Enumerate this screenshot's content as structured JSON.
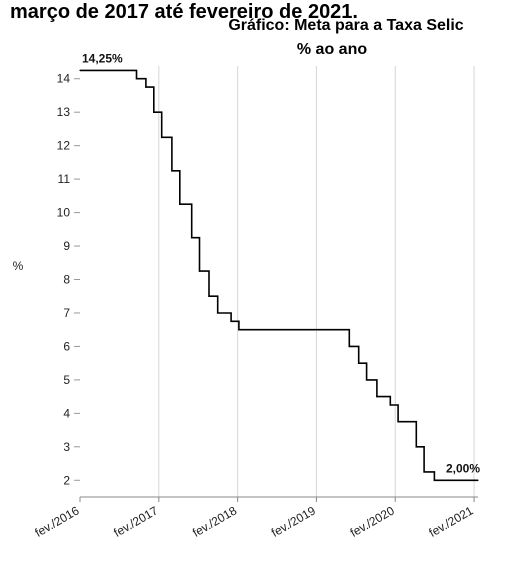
{
  "heading_fragment": "março de 2017 até fevereiro de 2021.",
  "chart_data": {
    "type": "line",
    "step": true,
    "title": "Gráfico: Meta para a Taxa Selic",
    "subtitle": "% ao ano",
    "ylabel": "%",
    "xlabel": "",
    "ylim": [
      1.5,
      14.5
    ],
    "yticks": [
      2,
      3,
      4,
      5,
      6,
      7,
      8,
      9,
      10,
      11,
      12,
      13,
      14
    ],
    "xlim": [
      2016.0833,
      2021.1333
    ],
    "xticks": [
      {
        "label": "fev./2016",
        "x": 2016.0833
      },
      {
        "label": "fev./2017",
        "x": 2017.0833
      },
      {
        "label": "fev./2018",
        "x": 2018.0833
      },
      {
        "label": "fev./2019",
        "x": 2019.0833
      },
      {
        "label": "fev./2020",
        "x": 2020.0833
      },
      {
        "label": "fev./2021",
        "x": 2021.0833
      }
    ],
    "grid": {
      "vertical": true,
      "horizontal": false
    },
    "series": [
      {
        "color": "#000000",
        "points": [
          {
            "x": 2016.0833,
            "y": 14.25
          },
          {
            "x": 2016.8,
            "y": 14.0
          },
          {
            "x": 2016.92,
            "y": 13.75
          },
          {
            "x": 2017.02,
            "y": 13.0
          },
          {
            "x": 2017.12,
            "y": 12.25
          },
          {
            "x": 2017.25,
            "y": 11.25
          },
          {
            "x": 2017.35,
            "y": 10.25
          },
          {
            "x": 2017.5,
            "y": 9.25
          },
          {
            "x": 2017.6,
            "y": 8.25
          },
          {
            "x": 2017.72,
            "y": 7.5
          },
          {
            "x": 2017.83,
            "y": 7.0
          },
          {
            "x": 2018.0,
            "y": 6.75
          },
          {
            "x": 2018.1,
            "y": 6.5
          },
          {
            "x": 2019.5,
            "y": 6.0
          },
          {
            "x": 2019.62,
            "y": 5.5
          },
          {
            "x": 2019.72,
            "y": 5.0
          },
          {
            "x": 2019.85,
            "y": 4.5
          },
          {
            "x": 2020.02,
            "y": 4.25
          },
          {
            "x": 2020.12,
            "y": 3.75
          },
          {
            "x": 2020.35,
            "y": 3.0
          },
          {
            "x": 2020.45,
            "y": 2.25
          },
          {
            "x": 2020.58,
            "y": 2.0
          },
          {
            "x": 2021.1333,
            "y": 2.0
          }
        ]
      }
    ],
    "annotations": [
      {
        "text": "14,25%",
        "x": 2016.0833,
        "y": 14.25,
        "anchor": "start"
      },
      {
        "text": "2,00%",
        "x": 2021.1333,
        "y": 2.0,
        "anchor": "end"
      }
    ]
  }
}
